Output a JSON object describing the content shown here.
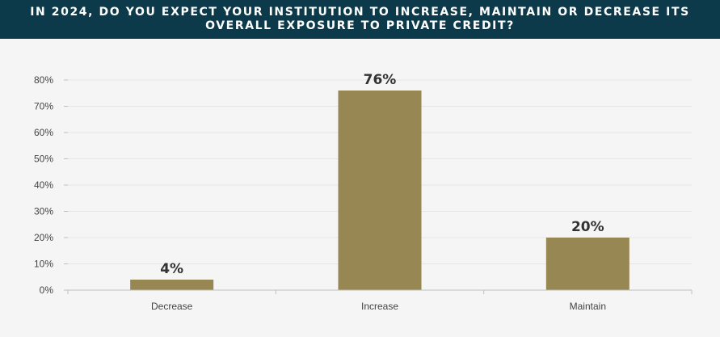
{
  "header": {
    "title": "IN 2024, DO YOU EXPECT YOUR INSTITUTION TO INCREASE, MAINTAIN OR DECREASE ITS OVERALL EXPOSURE TO PRIVATE CREDIT?"
  },
  "colors": {
    "header_bg": "#0d3a4a",
    "bar": "#978753",
    "gridline": "#e6e6e6",
    "axis": "#bfbfbf"
  },
  "chart_data": {
    "type": "bar",
    "title": "IN 2024, DO YOU EXPECT YOUR INSTITUTION TO INCREASE, MAINTAIN OR DECREASE ITS OVERALL EXPOSURE TO PRIVATE CREDIT?",
    "categories": [
      "Decrease",
      "Increase",
      "Maintain"
    ],
    "values": [
      4,
      76,
      20
    ],
    "data_labels": [
      "4%",
      "76%",
      "20%"
    ],
    "ylim": [
      0,
      80
    ],
    "yticks": [
      0,
      10,
      20,
      30,
      40,
      50,
      60,
      70,
      80
    ],
    "ytick_labels": [
      "0%",
      "10%",
      "20%",
      "30%",
      "40%",
      "50%",
      "60%",
      "70%",
      "80%"
    ],
    "xlabel": "",
    "ylabel": "",
    "grid": true,
    "legend": "none"
  }
}
